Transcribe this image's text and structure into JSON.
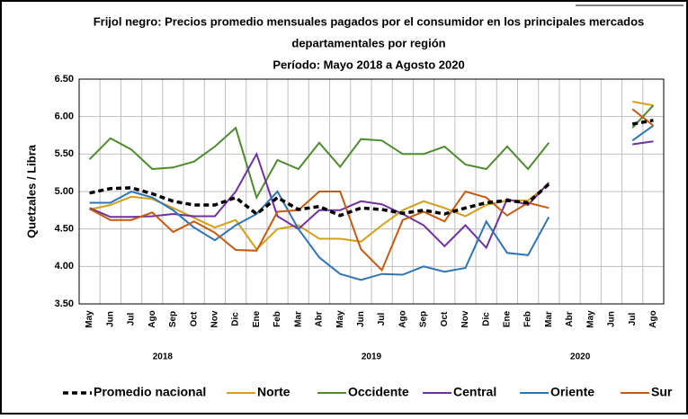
{
  "chart_data": {
    "type": "line",
    "title": [
      "Frijol negro: Precios promedio mensuales pagados por el consumidor en los principales mercados",
      "departamentales por región",
      "Período: Mayo 2018 a Agosto 2020"
    ],
    "y_label": "Quetzales / Libra",
    "categories": [
      "May",
      "Jun",
      "Jul",
      "Ago",
      "Sep",
      "Oct",
      "Nov",
      "Dic",
      "Ene",
      "Feb",
      "Mar",
      "Abr",
      "May",
      "Jun",
      "Jul",
      "Ago",
      "Sep",
      "Oct",
      "Nov",
      "Dic",
      "Ene",
      "Feb",
      "Mar",
      "Abr",
      "May",
      "Jun",
      "Jul",
      "Ago"
    ],
    "years": [
      "2018",
      "2019",
      "2020"
    ],
    "ylim": [
      3.5,
      6.5
    ],
    "yticks": [
      {
        "value": 3.5,
        "label": "3.50"
      },
      {
        "value": 4,
        "label": "4.00"
      },
      {
        "value": 4.5,
        "label": "4.50"
      },
      {
        "value": 5,
        "label": "5.00"
      },
      {
        "value": 5.5,
        "label": "5.50"
      },
      {
        "value": 6,
        "label": "6.00"
      },
      {
        "value": 6.5,
        "label": "6.50"
      }
    ],
    "grid": true,
    "series": [
      {
        "name": "Promedio nacional",
        "color": "#000000",
        "dashed": true,
        "values": [
          4.98,
          5.04,
          5.05,
          4.97,
          4.87,
          4.82,
          4.82,
          4.92,
          4.7,
          4.92,
          4.76,
          4.8,
          4.68,
          4.78,
          4.76,
          4.71,
          4.75,
          4.7,
          4.78,
          4.85,
          4.88,
          4.85,
          5.1,
          null,
          null,
          null,
          5.9,
          5.95
        ]
      },
      {
        "name": "Norte",
        "color": "#d4a017",
        "values": [
          4.76,
          4.82,
          4.93,
          4.9,
          4.78,
          4.65,
          4.52,
          4.62,
          4.23,
          4.5,
          4.55,
          4.37,
          4.37,
          4.33,
          4.55,
          4.75,
          4.87,
          4.78,
          4.67,
          4.82,
          4.88,
          4.88,
          5.1,
          null,
          null,
          null,
          6.2,
          6.15
        ]
      },
      {
        "name": "Occidente",
        "color": "#4e8a2e",
        "values": [
          5.43,
          5.71,
          5.56,
          5.3,
          5.32,
          5.4,
          5.6,
          5.85,
          4.92,
          5.42,
          5.3,
          5.65,
          5.33,
          5.7,
          5.68,
          5.5,
          5.5,
          5.6,
          5.36,
          5.3,
          5.6,
          5.3,
          5.65,
          null,
          null,
          null,
          5.85,
          6.15
        ]
      },
      {
        "name": "Central",
        "color": "#7030a0",
        "values": [
          4.78,
          4.66,
          4.66,
          4.67,
          4.7,
          4.67,
          4.67,
          5.0,
          5.5,
          4.67,
          4.5,
          4.75,
          4.75,
          4.87,
          4.83,
          4.7,
          4.55,
          4.27,
          4.55,
          4.25,
          4.9,
          4.82,
          5.12,
          null,
          null,
          null,
          5.63,
          5.67
        ]
      },
      {
        "name": "Oriente",
        "color": "#2e75b6",
        "values": [
          4.85,
          4.85,
          5.0,
          4.92,
          4.75,
          4.52,
          4.35,
          4.55,
          4.7,
          5.0,
          4.5,
          4.12,
          3.9,
          3.82,
          3.9,
          3.89,
          4.0,
          3.93,
          3.98,
          4.6,
          4.18,
          4.15,
          4.66,
          null,
          null,
          null,
          5.68,
          5.88
        ]
      },
      {
        "name": "Sur",
        "color": "#c55a11",
        "values": [
          4.77,
          4.62,
          4.62,
          4.72,
          4.46,
          4.6,
          4.45,
          4.22,
          4.21,
          4.73,
          4.75,
          5.0,
          5.0,
          4.23,
          3.95,
          4.62,
          4.73,
          4.6,
          5.0,
          4.92,
          4.68,
          4.85,
          4.78,
          null,
          null,
          null,
          6.1,
          5.88
        ]
      }
    ]
  }
}
